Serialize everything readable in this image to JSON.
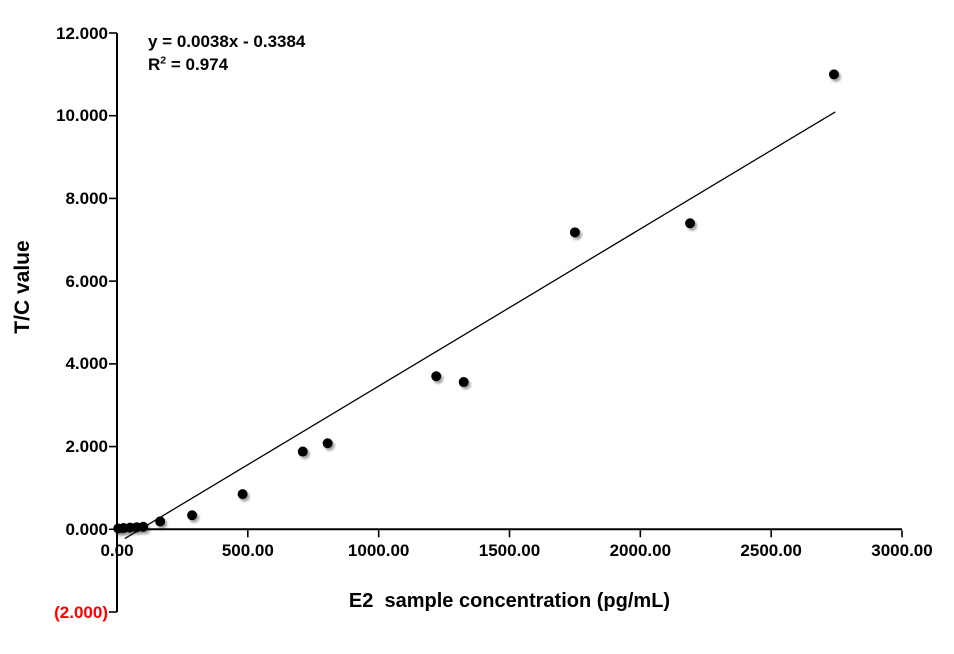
{
  "chart_data": {
    "type": "scatter",
    "title": "",
    "xlabel": "E2  sample concentration (pg/mL)",
    "ylabel": "T/C value",
    "xlim": [
      0,
      3000
    ],
    "ylim": [
      -2,
      12
    ],
    "grid": false,
    "legend": "none",
    "x_ticks": [
      {
        "value": 0,
        "label": "0.00"
      },
      {
        "value": 500,
        "label": "500.00"
      },
      {
        "value": 1000,
        "label": "1000.00"
      },
      {
        "value": 1500,
        "label": "1500.00"
      },
      {
        "value": 2000,
        "label": "2000.00"
      },
      {
        "value": 2500,
        "label": "2500.00"
      },
      {
        "value": 3000,
        "label": "3000.00"
      }
    ],
    "y_ticks": [
      {
        "value": 12,
        "label": "12.000"
      },
      {
        "value": 10,
        "label": "10.000"
      },
      {
        "value": 8,
        "label": "8.000"
      },
      {
        "value": 6,
        "label": "6.000"
      },
      {
        "value": 4,
        "label": "4.000"
      },
      {
        "value": 2,
        "label": "2.000"
      },
      {
        "value": 0,
        "label": "0.000"
      },
      {
        "value": -2,
        "label": "(2.000)"
      }
    ],
    "points": [
      {
        "x": 5,
        "y": 0.02
      },
      {
        "x": 25,
        "y": 0.03
      },
      {
        "x": 50,
        "y": 0.04
      },
      {
        "x": 75,
        "y": 0.05
      },
      {
        "x": 100,
        "y": 0.06
      },
      {
        "x": 165,
        "y": 0.19
      },
      {
        "x": 287,
        "y": 0.34
      },
      {
        "x": 480,
        "y": 0.85
      },
      {
        "x": 710,
        "y": 1.88
      },
      {
        "x": 805,
        "y": 2.08
      },
      {
        "x": 1220,
        "y": 3.7
      },
      {
        "x": 1325,
        "y": 3.56
      },
      {
        "x": 1750,
        "y": 7.18
      },
      {
        "x": 2190,
        "y": 7.4
      },
      {
        "x": 2740,
        "y": 11.0
      }
    ],
    "trendline": {
      "slope": 0.0038,
      "intercept": -0.3384,
      "x_start": 30,
      "x_end": 2745,
      "equation": "y = 0.0038x - 0.3384",
      "r2_base": "R",
      "r2_sup": "2",
      "r2_tail": " = 0.974"
    },
    "colors": {
      "points": "#000000",
      "trendline": "#000000",
      "axis": "#000000",
      "text": "#000000",
      "negative_tick": "#ff0000",
      "background": "#ffffff"
    }
  }
}
